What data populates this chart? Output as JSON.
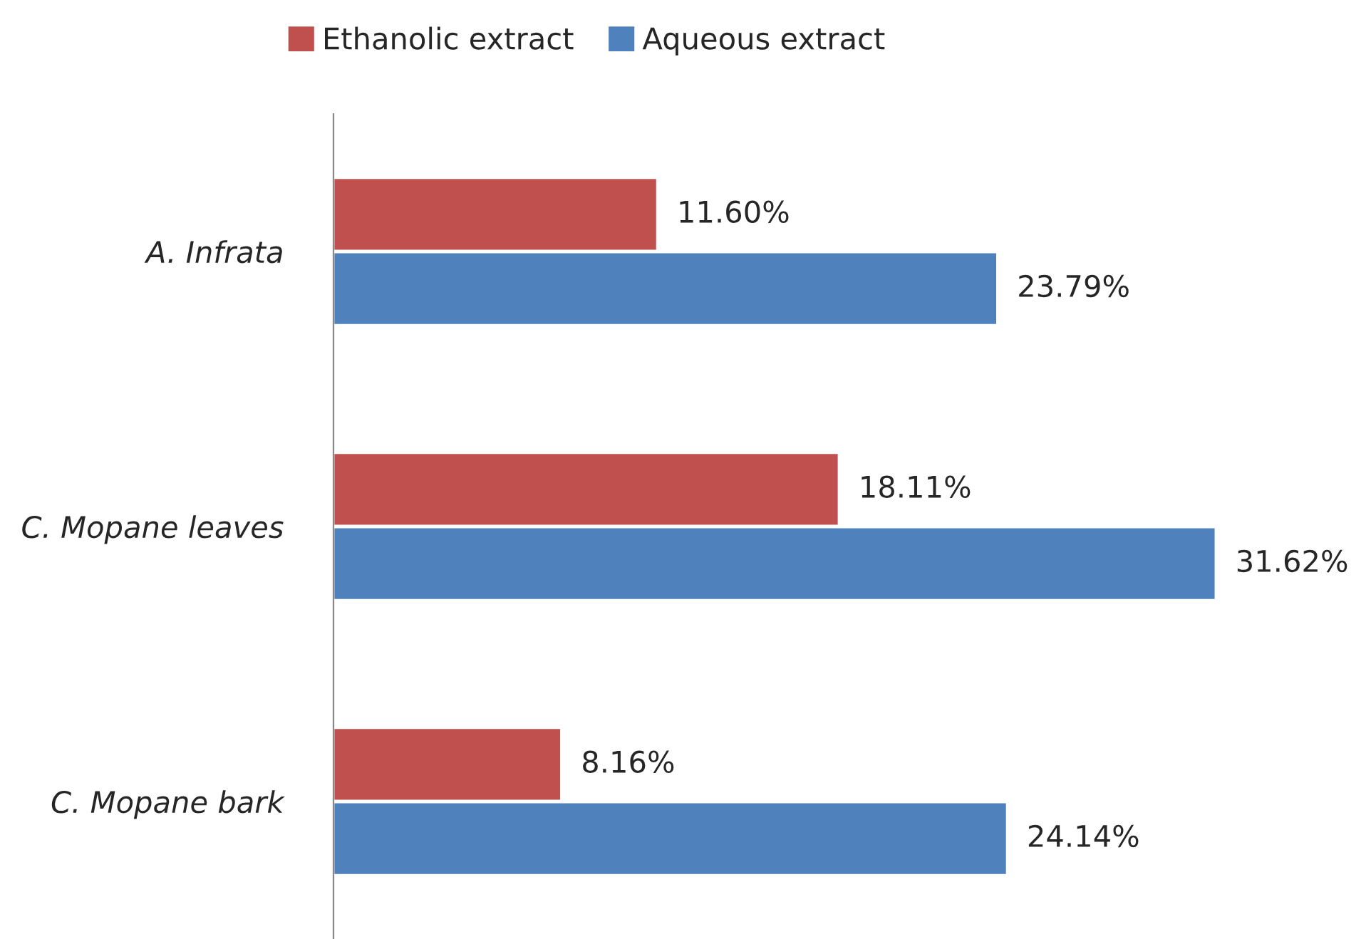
{
  "chart_data": {
    "type": "bar",
    "orientation": "horizontal",
    "categories": [
      "A. Infrata",
      "C. Mopane leaves",
      "C. Mopane bark"
    ],
    "series": [
      {
        "name": "Ethanolic extract",
        "color": "#c0504d",
        "values": [
          11.6,
          18.11,
          8.16
        ],
        "value_labels": [
          "11.60%",
          "18.11%",
          "8.16%"
        ]
      },
      {
        "name": "Aqueous extract",
        "color": "#4f81bd",
        "values": [
          23.79,
          31.62,
          24.14
        ],
        "value_labels": [
          "23.79%",
          "31.62%",
          "24.14%"
        ]
      }
    ],
    "legend": "top",
    "grid": false,
    "tick_labels": "y"
  }
}
